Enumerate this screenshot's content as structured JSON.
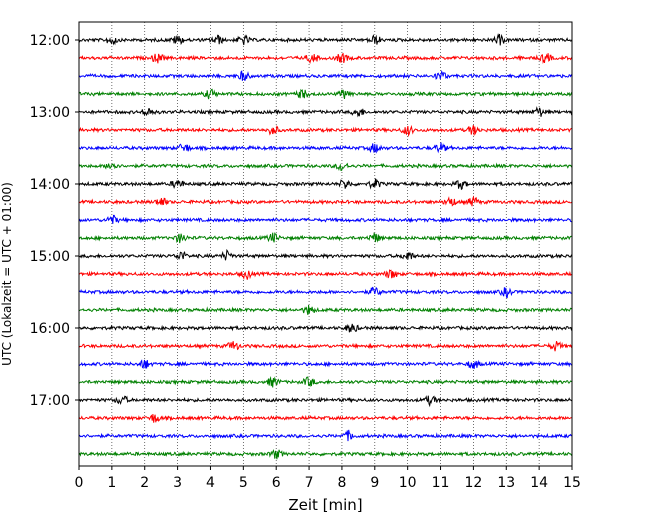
{
  "chart_data": {
    "type": "line",
    "title": "",
    "xlabel": "Zeit  [min]",
    "ylabel": "UTC (Lokalzeit = UTC + 01:00)",
    "xlim": [
      0,
      15
    ],
    "x_ticks": [
      "0",
      "1",
      "2",
      "3",
      "4",
      "5",
      "6",
      "7",
      "8",
      "9",
      "10",
      "11",
      "12",
      "13",
      "14",
      "15"
    ],
    "y_ticks": [
      "12:00",
      "13:00",
      "14:00",
      "15:00",
      "16:00",
      "17:00"
    ],
    "grid": "vertical dotted",
    "trace_colors": [
      "#000000",
      "#ff0000",
      "#0000ff",
      "#008000"
    ],
    "traces_per_hour": 4,
    "series": [
      {
        "start": "12:00",
        "color": "#000000",
        "events_min": [
          1.0,
          3.0,
          4.2,
          5.0,
          9.0,
          12.8
        ]
      },
      {
        "start": "12:15",
        "color": "#ff0000",
        "events_min": [
          2.4,
          7.1,
          8.0,
          14.2
        ]
      },
      {
        "start": "12:30",
        "color": "#0000ff",
        "events_min": [
          5.0,
          11.0
        ]
      },
      {
        "start": "12:45",
        "color": "#008000",
        "events_min": [
          4.0,
          6.8,
          8.1
        ]
      },
      {
        "start": "13:00",
        "color": "#000000",
        "events_min": [
          2.1,
          8.5,
          14.0
        ]
      },
      {
        "start": "13:15",
        "color": "#ff0000",
        "events_min": [
          5.9,
          10.0,
          12.0
        ]
      },
      {
        "start": "13:30",
        "color": "#0000ff",
        "events_min": [
          3.2,
          9.0,
          11.0
        ]
      },
      {
        "start": "13:45",
        "color": "#008000",
        "events_min": [
          1.0,
          8.0
        ]
      },
      {
        "start": "14:00",
        "color": "#000000",
        "events_min": [
          3.0,
          8.1,
          9.0,
          11.6
        ]
      },
      {
        "start": "14:15",
        "color": "#ff0000",
        "events_min": [
          2.5,
          11.3,
          12.0
        ]
      },
      {
        "start": "14:30",
        "color": "#0000ff",
        "events_min": [
          1.0
        ]
      },
      {
        "start": "14:45",
        "color": "#008000",
        "events_min": [
          3.1,
          5.9,
          9.0
        ]
      },
      {
        "start": "15:00",
        "color": "#000000",
        "events_min": [
          3.1,
          4.5,
          10.0
        ]
      },
      {
        "start": "15:15",
        "color": "#ff0000",
        "events_min": [
          5.1,
          9.5
        ]
      },
      {
        "start": "15:30",
        "color": "#0000ff",
        "events_min": [
          9.0,
          13.0
        ]
      },
      {
        "start": "15:45",
        "color": "#008000",
        "events_min": [
          7.0
        ]
      },
      {
        "start": "16:00",
        "color": "#000000",
        "events_min": [
          8.3
        ]
      },
      {
        "start": "16:15",
        "color": "#ff0000",
        "events_min": [
          4.7,
          14.5
        ]
      },
      {
        "start": "16:30",
        "color": "#0000ff",
        "events_min": [
          2.0,
          12.0
        ]
      },
      {
        "start": "16:45",
        "color": "#008000",
        "events_min": [
          5.9,
          7.0
        ]
      },
      {
        "start": "17:00",
        "color": "#000000",
        "events_min": [
          1.3,
          10.7
        ]
      },
      {
        "start": "17:15",
        "color": "#ff0000",
        "events_min": [
          2.3
        ]
      },
      {
        "start": "17:30",
        "color": "#0000ff",
        "events_min": [
          8.2
        ]
      },
      {
        "start": "17:45",
        "color": "#008000",
        "events_min": [
          6.0
        ]
      }
    ]
  }
}
